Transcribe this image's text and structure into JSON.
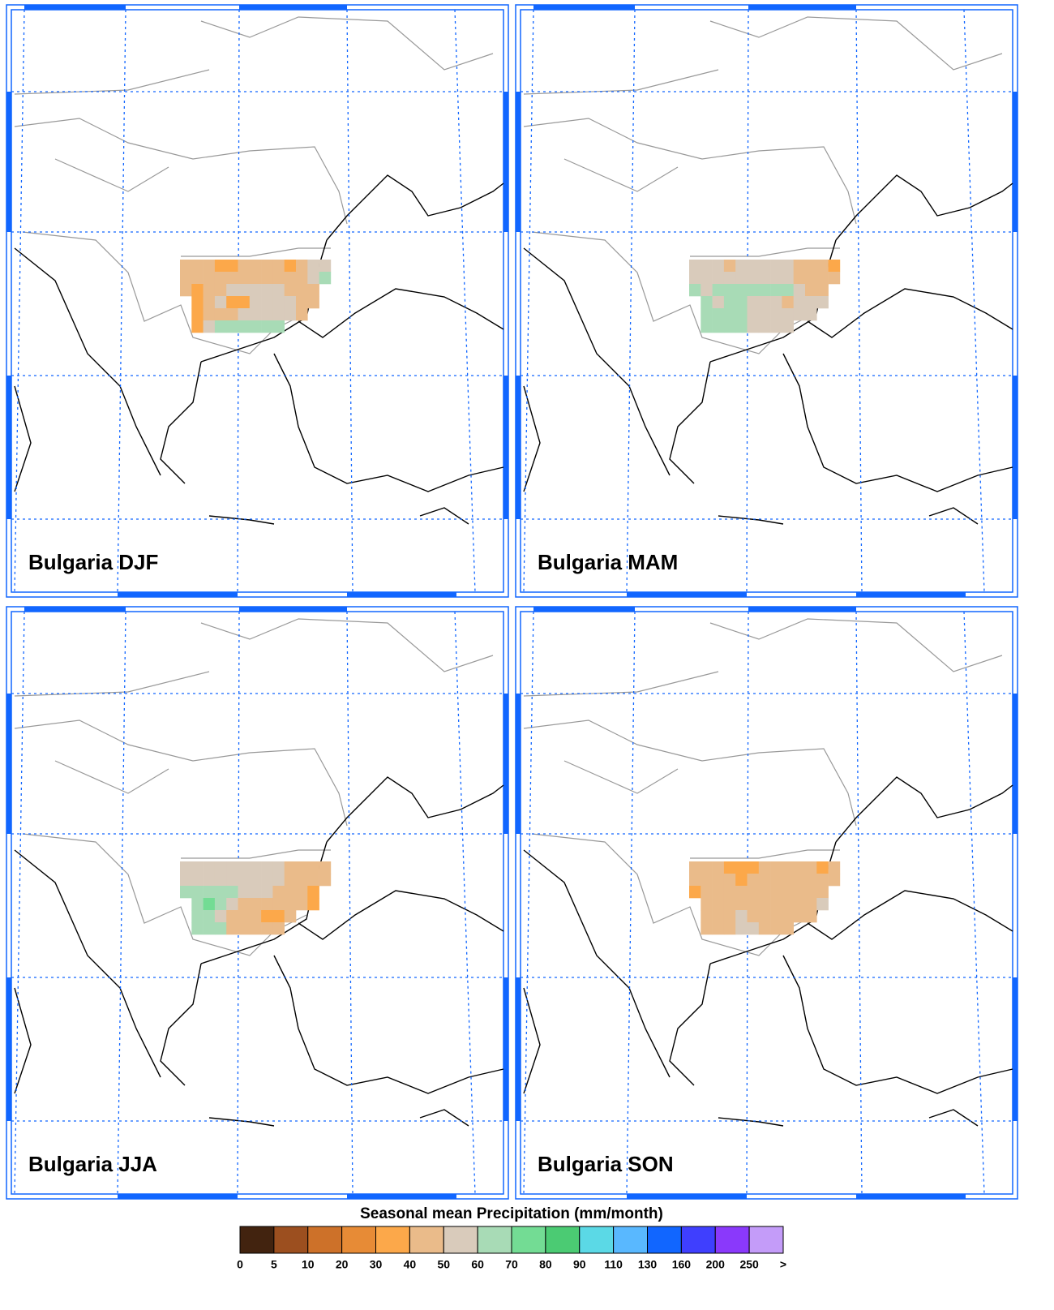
{
  "panels": [
    {
      "title": "Bulgaria DJF",
      "cells": [
        [
          45,
          45,
          45,
          35,
          35,
          45,
          45,
          45,
          45,
          35,
          45,
          55,
          55
        ],
        [
          45,
          45,
          45,
          45,
          45,
          45,
          45,
          45,
          45,
          45,
          45,
          55,
          65
        ],
        [
          45,
          35,
          45,
          45,
          55,
          55,
          55,
          55,
          55,
          45,
          45,
          45,
          null
        ],
        [
          null,
          35,
          45,
          55,
          35,
          35,
          55,
          55,
          55,
          55,
          45,
          45,
          null
        ],
        [
          null,
          35,
          45,
          45,
          45,
          55,
          55,
          55,
          55,
          55,
          45,
          null,
          null
        ],
        [
          null,
          35,
          55,
          65,
          65,
          65,
          65,
          65,
          65,
          null,
          null,
          null,
          null
        ]
      ]
    },
    {
      "title": "Bulgaria MAM",
      "cells": [
        [
          55,
          55,
          55,
          45,
          55,
          55,
          55,
          55,
          55,
          45,
          45,
          45,
          35
        ],
        [
          55,
          55,
          55,
          55,
          55,
          55,
          55,
          55,
          55,
          45,
          45,
          45,
          45
        ],
        [
          65,
          55,
          65,
          65,
          65,
          65,
          65,
          65,
          65,
          55,
          45,
          45,
          null
        ],
        [
          null,
          65,
          55,
          65,
          65,
          55,
          55,
          55,
          45,
          55,
          55,
          55,
          null
        ],
        [
          null,
          65,
          65,
          65,
          65,
          55,
          55,
          55,
          55,
          55,
          55,
          null,
          null
        ],
        [
          null,
          65,
          65,
          65,
          65,
          55,
          55,
          55,
          55,
          null,
          null,
          null,
          null
        ]
      ]
    },
    {
      "title": "Bulgaria JJA",
      "cells": [
        [
          55,
          55,
          55,
          55,
          55,
          55,
          55,
          55,
          55,
          45,
          45,
          45,
          45
        ],
        [
          55,
          55,
          55,
          55,
          55,
          55,
          55,
          55,
          55,
          45,
          45,
          45,
          45
        ],
        [
          65,
          65,
          65,
          65,
          65,
          55,
          55,
          55,
          45,
          45,
          45,
          35,
          null
        ],
        [
          null,
          65,
          75,
          65,
          55,
          45,
          45,
          45,
          45,
          45,
          45,
          35,
          null
        ],
        [
          null,
          65,
          65,
          55,
          45,
          45,
          45,
          35,
          35,
          45,
          null,
          null,
          null
        ],
        [
          null,
          65,
          65,
          65,
          45,
          45,
          45,
          45,
          45,
          null,
          null,
          null,
          null
        ]
      ]
    },
    {
      "title": "Bulgaria SON",
      "cells": [
        [
          45,
          45,
          45,
          35,
          35,
          35,
          45,
          45,
          45,
          45,
          45,
          35,
          45
        ],
        [
          45,
          45,
          45,
          45,
          35,
          45,
          45,
          45,
          45,
          45,
          45,
          45,
          45
        ],
        [
          35,
          45,
          45,
          45,
          45,
          45,
          45,
          45,
          45,
          45,
          45,
          45,
          null
        ],
        [
          null,
          45,
          45,
          45,
          45,
          45,
          45,
          45,
          45,
          45,
          45,
          55,
          null
        ],
        [
          null,
          45,
          45,
          45,
          55,
          45,
          45,
          45,
          45,
          45,
          45,
          null,
          null
        ],
        [
          null,
          45,
          45,
          45,
          55,
          55,
          45,
          45,
          45,
          null,
          null,
          null,
          null
        ]
      ]
    }
  ],
  "colorbar": {
    "title": "Seasonal mean Precipitation (mm/month)",
    "labels": [
      0,
      5,
      10,
      20,
      30,
      40,
      50,
      60,
      70,
      80,
      90,
      110,
      130,
      160,
      200,
      250,
      ">"
    ],
    "colors": [
      "#42230f",
      "#9c4f1f",
      "#cd7129",
      "#e78b36",
      "#fca84a",
      "#eabb8a",
      "#d9cbbb",
      "#a8dbb6",
      "#73dc94",
      "#4bcb73",
      "#5bd9e6",
      "#59b8ff",
      "#1166ff",
      "#3f3ffe",
      "#8a39fb",
      "#c49cf9"
    ]
  }
}
